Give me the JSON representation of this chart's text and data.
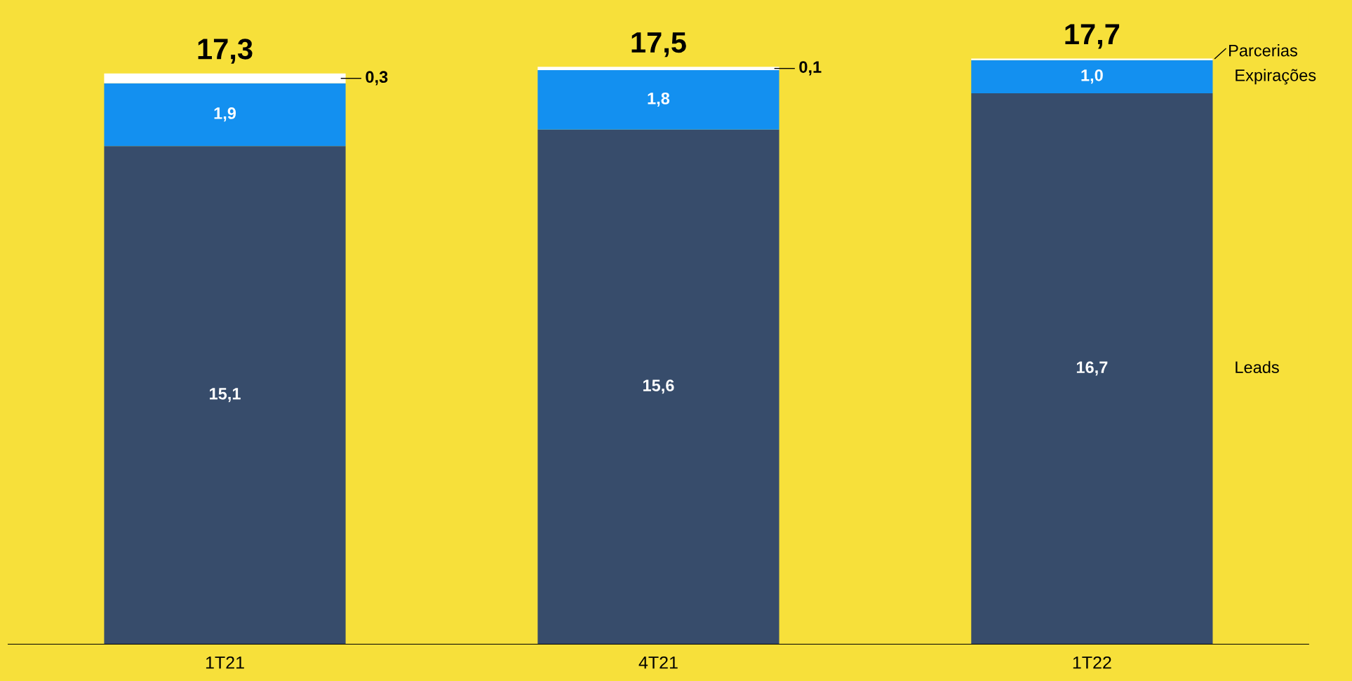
{
  "chart_data": {
    "type": "bar",
    "stacked": true,
    "categories": [
      "1T21",
      "4T21",
      "1T22"
    ],
    "series": [
      {
        "name": "Leads",
        "color": "#374c6b",
        "values": [
          15.1,
          15.6,
          16.7
        ],
        "value_labels": [
          "15,1",
          "15,6",
          "16,7"
        ]
      },
      {
        "name": "Expirações",
        "color": "#1390f0",
        "values": [
          1.9,
          1.8,
          1.0
        ],
        "value_labels": [
          "1,9",
          "1,8",
          "1,0"
        ]
      },
      {
        "name": "Parcerias",
        "color": "#ffffff",
        "values": [
          0.3,
          0.1,
          0.05
        ],
        "value_labels": [
          "0,3",
          "0,1",
          null
        ]
      }
    ],
    "totals": [
      "17,3",
      "17,5",
      "17,7"
    ],
    "grid": false,
    "legend": false
  }
}
